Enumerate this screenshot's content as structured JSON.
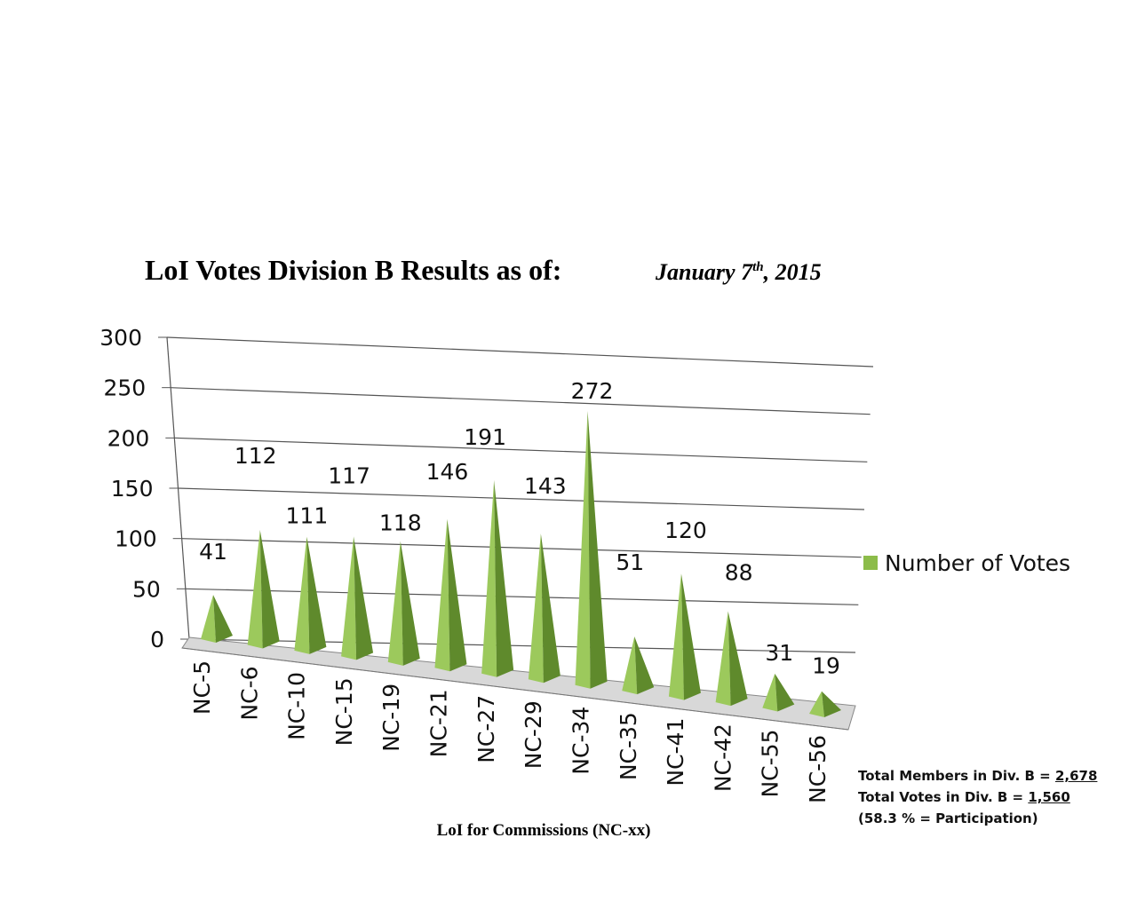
{
  "chart_data": {
    "type": "bar",
    "style": "3d-pyramid",
    "title": "LoI Votes Division B Results as of:",
    "title_date": {
      "month_day": "January 7",
      "suffix": "th",
      "year": ", 2015"
    },
    "xlabel": "LoI for Commissions (NC-xx)",
    "ylabel": "",
    "ylim": [
      0,
      300
    ],
    "yticks": [
      "0",
      "50",
      "100",
      "150",
      "200",
      "250",
      "300"
    ],
    "grid": true,
    "legend_position": "right",
    "categories": [
      "NC-5",
      "NC-6",
      "NC-10",
      "NC-15",
      "NC-19",
      "NC-21",
      "NC-27",
      "NC-29",
      "NC-34",
      "NC-35",
      "NC-41",
      "NC-42",
      "NC-55",
      "NC-56"
    ],
    "series": [
      {
        "name": "Number of Votes",
        "values": [
          41,
          112,
          111,
          117,
          118,
          146,
          191,
          143,
          272,
          51,
          120,
          88,
          31,
          19
        ],
        "color": "#8cbc4a"
      }
    ]
  },
  "notes": {
    "members_label": "Total Members in Div. B = ",
    "members_value": "2,678",
    "votes_label": "Total Votes in Div. B = ",
    "votes_value": "1,560",
    "participation": "(58.3 % = Participation)"
  }
}
